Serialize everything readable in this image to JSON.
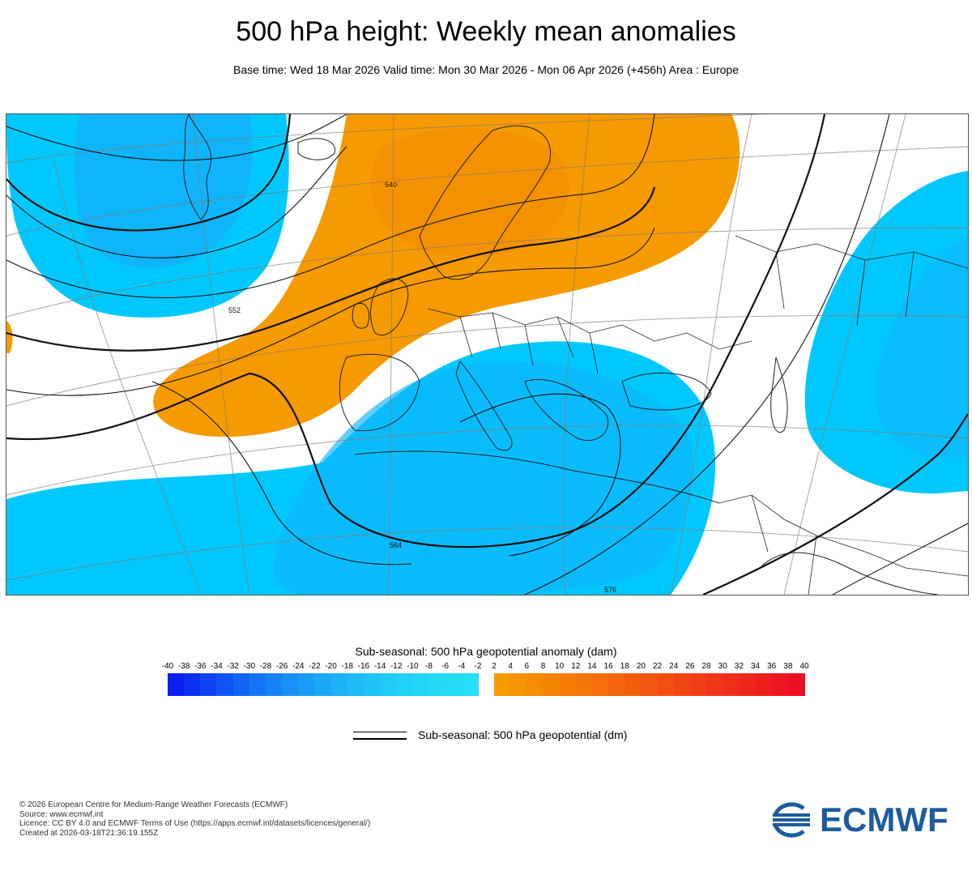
{
  "header": {
    "title": "500 hPa height: Weekly mean anomalies",
    "subtitle": "Base time: Wed 18 Mar 2026 Valid time: Mon 30 Mar 2026 - Mon 06 Apr 2026 (+456h) Area : Europe"
  },
  "map": {
    "area": "Europe",
    "contour_labels": [
      "540",
      "552",
      "564",
      "576"
    ],
    "colors": {
      "negative_anomaly": "#00c8ff",
      "strong_negative_anomaly": "#1e9bf0",
      "positive_anomaly": "#f59a00",
      "strong_positive_anomaly": "#f28a00",
      "coastline": "#222222",
      "graticule": "#8a7a6a"
    }
  },
  "legend": {
    "title": "Sub-seasonal: 500 hPa geopotential anomaly (dam)",
    "ticks": [
      "-40",
      "-38",
      "-36",
      "-34",
      "-32",
      "-30",
      "-28",
      "-26",
      "-24",
      "-22",
      "-20",
      "-18",
      "-16",
      "-14",
      "-12",
      "-10",
      "-8",
      "-6",
      "-4",
      "-2",
      "2",
      "4",
      "6",
      "8",
      "10",
      "12",
      "14",
      "16",
      "18",
      "20",
      "22",
      "24",
      "26",
      "28",
      "30",
      "32",
      "34",
      "36",
      "38",
      "40"
    ],
    "negative_colors": [
      "#0a1ff0",
      "#0c30f2",
      "#0e42f3",
      "#1054f4",
      "#1264f5",
      "#1474f6",
      "#1682f6",
      "#1890f6",
      "#1a9cf6",
      "#1ca7f6",
      "#1db1f6",
      "#1ebbf6",
      "#1fc3f6",
      "#20caf6",
      "#21d0f6",
      "#22d5f6",
      "#23d9f6",
      "#24dcf6",
      "#25dff6"
    ],
    "positive_colors": [
      "#f59a00",
      "#f59300",
      "#f58c02",
      "#f58404",
      "#f57d06",
      "#f47508",
      "#f46e0a",
      "#f3660c",
      "#f35e0e",
      "#f25610",
      "#f24e12",
      "#f14614",
      "#f13e16",
      "#f03618",
      "#f02e1a",
      "#ef261c",
      "#ef1e1e",
      "#ee1620",
      "#ee0e22"
    ],
    "line_label": "Sub-seasonal: 500 hPa geopotential (dm)"
  },
  "footer": {
    "line1": "© 2026 European Centre for Medium-Range Weather Forecasts (ECMWF)",
    "line2": "Source: www.ecmwf.int",
    "line3": "Licence: CC BY 4.0 and ECMWF Terms of Use (https://apps.ecmwf.int/datasets/licences/general/)",
    "line4": "Created at 2026-03-18T21:36:19.155Z"
  },
  "logo": {
    "text": "ECMWF",
    "color": "#1b5c9c"
  }
}
